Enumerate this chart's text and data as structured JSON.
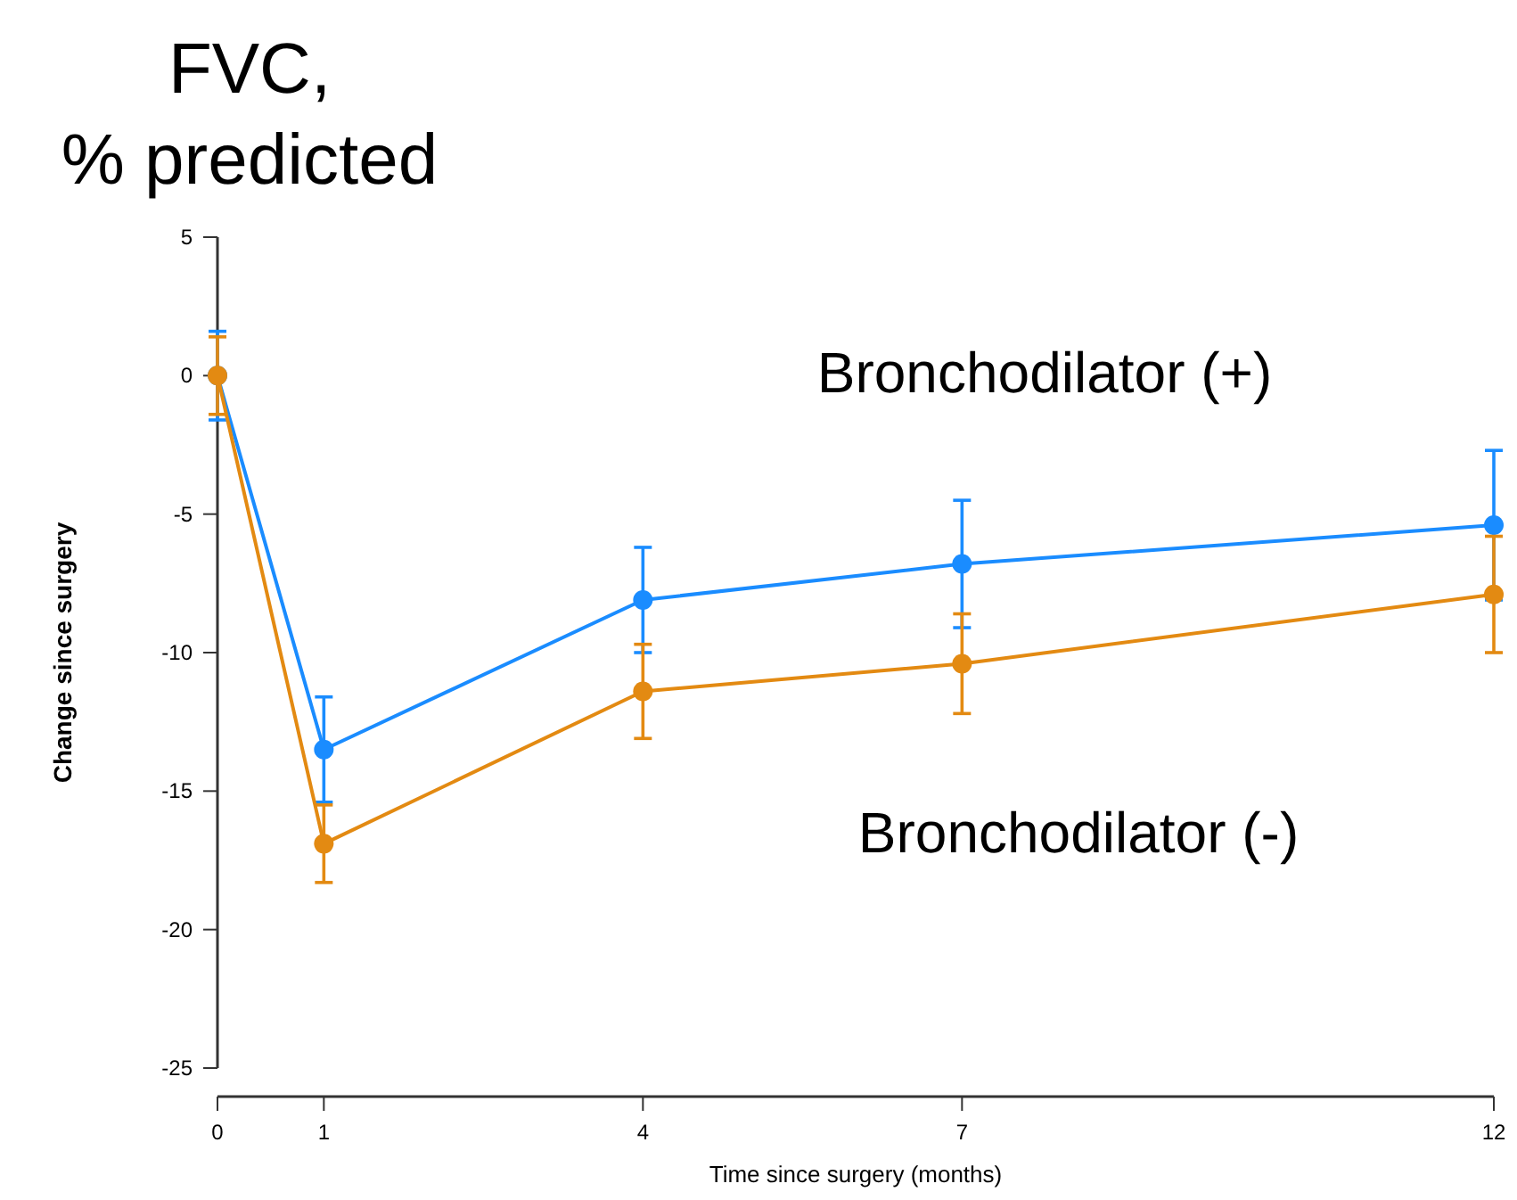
{
  "chart_data": {
    "type": "line",
    "title": "FVC, % predicted",
    "xlabel": "Time since surgery (months)",
    "ylabel": "Change since surgery",
    "x": [
      0,
      1,
      4,
      7,
      12
    ],
    "xlim": [
      0,
      12
    ],
    "xticks": [
      0,
      1,
      4,
      7,
      12
    ],
    "ylim": [
      -25,
      5
    ],
    "yticks": [
      5,
      0,
      -5,
      -10,
      -15,
      -20,
      -25
    ],
    "series": [
      {
        "name": "Bronchodilator (+)",
        "color": "#1a8cff",
        "values": [
          0,
          -13.5,
          -8.1,
          -6.8,
          -5.4
        ],
        "errors": [
          1.6,
          1.9,
          1.9,
          2.3,
          2.7
        ]
      },
      {
        "name": "Bronchodilator (-)",
        "color": "#e38a12",
        "values": [
          0,
          -16.9,
          -11.4,
          -10.4,
          -7.9
        ],
        "errors": [
          1.4,
          1.4,
          1.7,
          1.8,
          2.1
        ]
      }
    ],
    "marker": "circle",
    "line_style": "solid",
    "grid": false
  }
}
